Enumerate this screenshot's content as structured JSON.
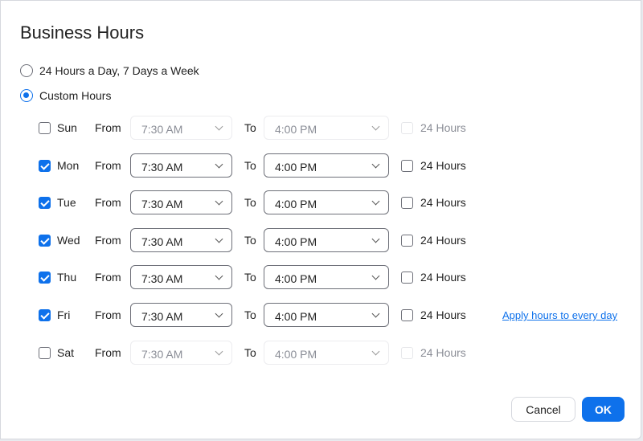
{
  "title": "Business Hours",
  "options": {
    "always": "24 Hours a Day, 7 Days a Week",
    "custom": "Custom Hours",
    "selected": "custom"
  },
  "labels": {
    "from": "From",
    "to": "To",
    "all_day": "24 Hours"
  },
  "days": [
    {
      "name": "Sun",
      "enabled": false,
      "from": "7:30 AM",
      "to": "4:00 PM",
      "all_day": false
    },
    {
      "name": "Mon",
      "enabled": true,
      "from": "7:30 AM",
      "to": "4:00 PM",
      "all_day": false
    },
    {
      "name": "Tue",
      "enabled": true,
      "from": "7:30 AM",
      "to": "4:00 PM",
      "all_day": false
    },
    {
      "name": "Wed",
      "enabled": true,
      "from": "7:30 AM",
      "to": "4:00 PM",
      "all_day": false
    },
    {
      "name": "Thu",
      "enabled": true,
      "from": "7:30 AM",
      "to": "4:00 PM",
      "all_day": false
    },
    {
      "name": "Fri",
      "enabled": true,
      "from": "7:30 AM",
      "to": "4:00 PM",
      "all_day": false
    },
    {
      "name": "Sat",
      "enabled": false,
      "from": "7:30 AM",
      "to": "4:00 PM",
      "all_day": false
    }
  ],
  "apply_link": "Apply hours to every day",
  "buttons": {
    "cancel": "Cancel",
    "ok": "OK"
  },
  "colors": {
    "accent": "#0e71eb"
  }
}
